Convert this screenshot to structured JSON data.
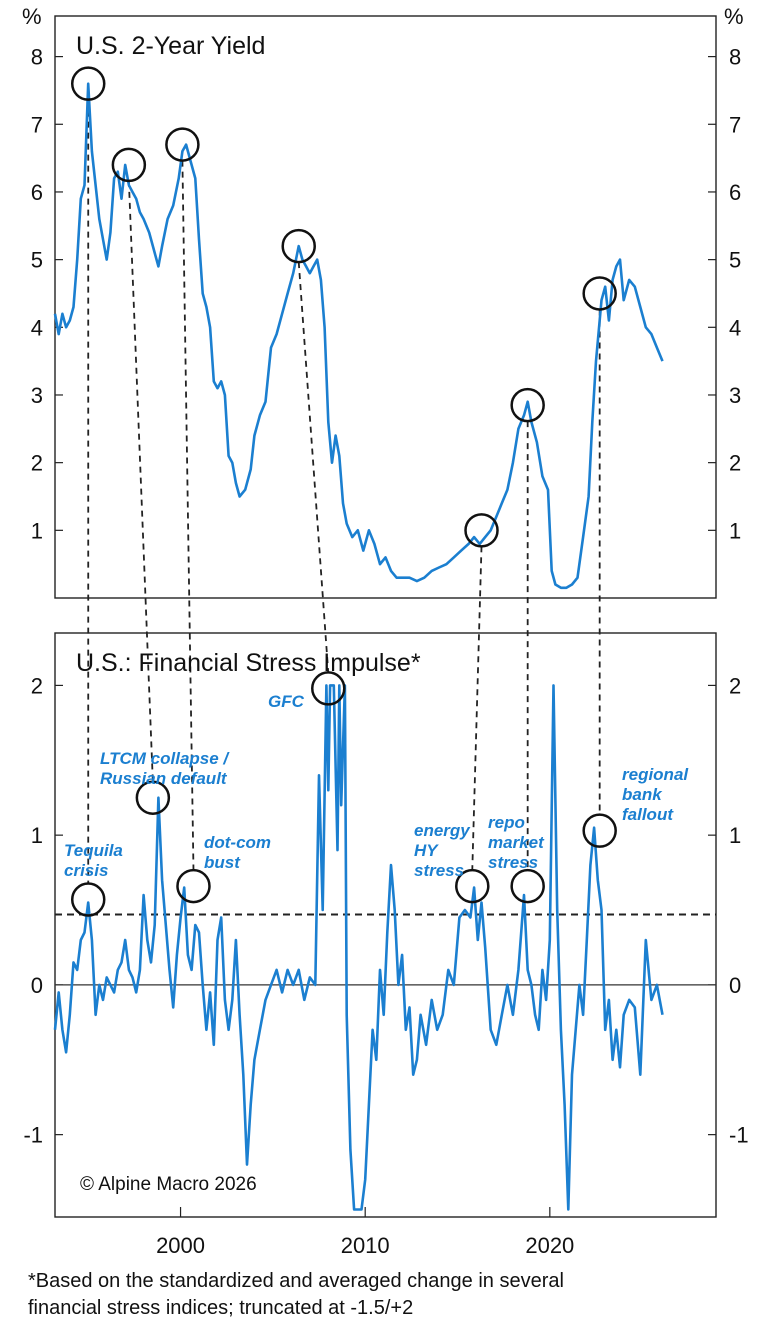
{
  "chart_data": [
    {
      "type": "line",
      "title": "U.S. 2-Year Yield",
      "unit_label": "%",
      "ylim": [
        0,
        8.6
      ],
      "yticks": [
        1,
        2,
        3,
        4,
        5,
        6,
        7,
        8
      ],
      "xlim": [
        1993.2,
        2029.0
      ],
      "color": "#1b7fd0",
      "series": [
        {
          "x": [
            1993.2,
            1993.4,
            1993.6,
            1993.8,
            1994.0,
            1994.2,
            1994.4,
            1994.6,
            1994.8,
            1995.0,
            1995.2,
            1995.4,
            1995.6,
            1995.8,
            1996.0,
            1996.2,
            1996.4,
            1996.6,
            1996.8,
            1997.0,
            1997.2,
            1997.4,
            1997.6,
            1997.8,
            1998.0,
            1998.3,
            1998.6,
            1998.8,
            1999.0,
            1999.3,
            1999.6,
            1999.9,
            2000.1,
            2000.3,
            2000.6,
            2000.8,
            2001.0,
            2001.2,
            2001.4,
            2001.6,
            2001.8,
            2002.0,
            2002.2,
            2002.4,
            2002.6,
            2002.8,
            2003.0,
            2003.2,
            2003.5,
            2003.8,
            2004.0,
            2004.3,
            2004.6,
            2004.9,
            2005.2,
            2005.5,
            2005.8,
            2006.1,
            2006.4,
            2006.6,
            2006.8,
            2007.0,
            2007.2,
            2007.4,
            2007.6,
            2007.8,
            2008.0,
            2008.2,
            2008.4,
            2008.6,
            2008.8,
            2009.0,
            2009.3,
            2009.6,
            2009.9,
            2010.2,
            2010.5,
            2010.8,
            2011.1,
            2011.4,
            2011.7,
            2012.0,
            2012.4,
            2012.8,
            2013.2,
            2013.6,
            2014.0,
            2014.4,
            2014.8,
            2015.2,
            2015.6,
            2015.9,
            2016.2,
            2016.5,
            2016.8,
            2017.1,
            2017.4,
            2017.7,
            2018.0,
            2018.3,
            2018.6,
            2018.8,
            2019.0,
            2019.3,
            2019.6,
            2019.9,
            2020.1,
            2020.3,
            2020.6,
            2020.9,
            2021.2,
            2021.5,
            2021.8,
            2022.1,
            2022.3,
            2022.5,
            2022.8,
            2023.0,
            2023.2,
            2023.4,
            2023.6,
            2023.8,
            2024.0,
            2024.3,
            2024.6,
            2024.9,
            2025.2,
            2025.5,
            2025.8,
            2026.1
          ],
          "y": [
            4.2,
            3.9,
            4.2,
            4.0,
            4.1,
            4.3,
            5.0,
            5.9,
            6.1,
            7.6,
            6.6,
            6.1,
            5.6,
            5.3,
            5.0,
            5.4,
            6.2,
            6.3,
            5.9,
            6.4,
            6.1,
            6.0,
            5.9,
            5.7,
            5.6,
            5.4,
            5.1,
            4.9,
            5.2,
            5.6,
            5.8,
            6.2,
            6.6,
            6.7,
            6.4,
            6.2,
            5.3,
            4.5,
            4.3,
            4.0,
            3.2,
            3.1,
            3.2,
            3.0,
            2.1,
            2.0,
            1.7,
            1.5,
            1.6,
            1.9,
            2.4,
            2.7,
            2.9,
            3.7,
            3.9,
            4.2,
            4.5,
            4.8,
            5.2,
            5.0,
            4.9,
            4.8,
            4.9,
            5.0,
            4.7,
            4.0,
            2.6,
            2.0,
            2.4,
            2.1,
            1.4,
            1.1,
            0.9,
            1.0,
            0.7,
            1.0,
            0.8,
            0.5,
            0.6,
            0.4,
            0.3,
            0.3,
            0.3,
            0.25,
            0.3,
            0.4,
            0.45,
            0.5,
            0.6,
            0.7,
            0.8,
            0.9,
            0.8,
            0.9,
            1.0,
            1.2,
            1.4,
            1.6,
            2.0,
            2.5,
            2.7,
            2.9,
            2.6,
            2.3,
            1.8,
            1.6,
            0.4,
            0.2,
            0.15,
            0.15,
            0.2,
            0.3,
            0.9,
            1.5,
            2.6,
            3.5,
            4.4,
            4.6,
            4.1,
            4.7,
            4.9,
            5.0,
            4.4,
            4.7,
            4.6,
            4.3,
            4.0,
            3.9,
            3.7,
            3.5
          ]
        }
      ],
      "annotations": [
        {
          "x": 1995.0,
          "y": 7.6
        },
        {
          "x": 1997.2,
          "y": 6.4
        },
        {
          "x": 2000.1,
          "y": 6.7
        },
        {
          "x": 2006.4,
          "y": 5.2
        },
        {
          "x": 2016.3,
          "y": 1.0
        },
        {
          "x": 2018.8,
          "y": 2.85
        },
        {
          "x": 2022.7,
          "y": 4.5
        }
      ]
    },
    {
      "type": "line",
      "title": "U.S.: Financial Stress Impulse*",
      "ylim": [
        -1.55,
        2.35
      ],
      "yticks": [
        -1,
        0,
        1,
        2
      ],
      "xlim": [
        1993.2,
        2029.0
      ],
      "xticks": [
        2000,
        2010,
        2020
      ],
      "threshold": 0.47,
      "color": "#1b7fd0",
      "series": [
        {
          "x": [
            1993.2,
            1993.4,
            1993.6,
            1993.8,
            1994.0,
            1994.2,
            1994.4,
            1994.6,
            1994.8,
            1995.0,
            1995.2,
            1995.4,
            1995.6,
            1995.8,
            1996.0,
            1996.2,
            1996.4,
            1996.6,
            1996.8,
            1997.0,
            1997.2,
            1997.4,
            1997.6,
            1997.8,
            1998.0,
            1998.2,
            1998.4,
            1998.6,
            1998.8,
            1999.0,
            1999.2,
            1999.4,
            1999.6,
            1999.8,
            2000.0,
            2000.2,
            2000.4,
            2000.6,
            2000.8,
            2001.0,
            2001.2,
            2001.4,
            2001.6,
            2001.8,
            2002.0,
            2002.2,
            2002.4,
            2002.6,
            2002.8,
            2003.0,
            2003.2,
            2003.4,
            2003.6,
            2003.8,
            2004.0,
            2004.3,
            2004.6,
            2004.9,
            2005.2,
            2005.5,
            2005.8,
            2006.1,
            2006.4,
            2006.7,
            2007.0,
            2007.3,
            2007.5,
            2007.7,
            2007.9,
            2008.0,
            2008.1,
            2008.3,
            2008.5,
            2008.6,
            2008.7,
            2008.9,
            2009.0,
            2009.2,
            2009.4,
            2009.6,
            2009.8,
            2010.0,
            2010.2,
            2010.4,
            2010.6,
            2010.8,
            2011.0,
            2011.2,
            2011.4,
            2011.6,
            2011.8,
            2012.0,
            2012.2,
            2012.4,
            2012.6,
            2012.8,
            2013.0,
            2013.3,
            2013.6,
            2013.9,
            2014.2,
            2014.5,
            2014.8,
            2015.1,
            2015.4,
            2015.7,
            2015.9,
            2016.1,
            2016.3,
            2016.5,
            2016.8,
            2017.1,
            2017.4,
            2017.7,
            2018.0,
            2018.3,
            2018.6,
            2018.8,
            2019.0,
            2019.2,
            2019.4,
            2019.6,
            2019.8,
            2020.0,
            2020.2,
            2020.4,
            2020.6,
            2020.8,
            2021.0,
            2021.2,
            2021.4,
            2021.6,
            2021.8,
            2022.0,
            2022.2,
            2022.4,
            2022.6,
            2022.8,
            2023.0,
            2023.2,
            2023.4,
            2023.6,
            2023.8,
            2024.0,
            2024.3,
            2024.6,
            2024.9,
            2025.2,
            2025.5,
            2025.8,
            2026.1
          ],
          "y": [
            -0.3,
            -0.05,
            -0.3,
            -0.45,
            -0.2,
            0.15,
            0.1,
            0.3,
            0.35,
            0.55,
            0.3,
            -0.2,
            0.0,
            -0.1,
            0.05,
            0.0,
            -0.05,
            0.1,
            0.15,
            0.3,
            0.1,
            0.05,
            -0.05,
            0.1,
            0.6,
            0.3,
            0.15,
            0.4,
            1.25,
            0.7,
            0.4,
            0.1,
            -0.15,
            0.2,
            0.45,
            0.65,
            0.2,
            0.1,
            0.4,
            0.35,
            0.0,
            -0.3,
            -0.05,
            -0.4,
            0.3,
            0.45,
            -0.1,
            -0.3,
            -0.1,
            0.3,
            -0.2,
            -0.6,
            -1.2,
            -0.8,
            -0.5,
            -0.3,
            -0.1,
            0.0,
            0.1,
            -0.05,
            0.1,
            0.0,
            0.1,
            -0.1,
            0.05,
            0.0,
            1.4,
            0.5,
            2.0,
            1.3,
            2.0,
            2.0,
            0.9,
            2.0,
            1.2,
            2.0,
            -0.2,
            -1.1,
            -1.5,
            -1.5,
            -1.5,
            -1.3,
            -0.8,
            -0.3,
            -0.5,
            0.1,
            -0.2,
            0.35,
            0.8,
            0.5,
            0.0,
            0.2,
            -0.3,
            -0.15,
            -0.6,
            -0.5,
            -0.2,
            -0.4,
            -0.1,
            -0.3,
            -0.2,
            0.1,
            0.0,
            0.45,
            0.5,
            0.45,
            0.65,
            0.3,
            0.55,
            0.25,
            -0.3,
            -0.4,
            -0.2,
            0.0,
            -0.2,
            0.1,
            0.6,
            0.1,
            0.0,
            -0.2,
            -0.3,
            0.1,
            -0.1,
            0.3,
            2.0,
            0.5,
            -0.3,
            -0.8,
            -1.5,
            -0.6,
            -0.3,
            0.0,
            -0.2,
            0.3,
            0.8,
            1.05,
            0.7,
            0.5,
            -0.3,
            -0.1,
            -0.5,
            -0.3,
            -0.55,
            -0.2,
            -0.1,
            -0.15,
            -0.6,
            0.3,
            -0.1,
            0.0,
            -0.2
          ]
        }
      ],
      "labels": [
        {
          "text": "Tequila crisis",
          "x": 1995.0,
          "y": 0.57
        },
        {
          "text": "LTCM collapse / Russian default",
          "x": 1998.5,
          "y": 1.25
        },
        {
          "text": "dot-com bust",
          "x": 2000.7,
          "y": 0.66
        },
        {
          "text": "GFC",
          "x": 2008.0,
          "y": 1.98
        },
        {
          "text": "energy HY stress",
          "x": 2015.8,
          "y": 0.66
        },
        {
          "text": "repo market stress",
          "x": 2018.8,
          "y": 0.66
        },
        {
          "text": "regional bank fallout",
          "x": 2022.7,
          "y": 1.03
        }
      ]
    }
  ],
  "copyright": "© Alpine Macro 2026",
  "footnote": {
    "line1": "*Based on the standardized and averaged change in several",
    "line2": "financial stress indices; truncated at -1.5/+2"
  }
}
